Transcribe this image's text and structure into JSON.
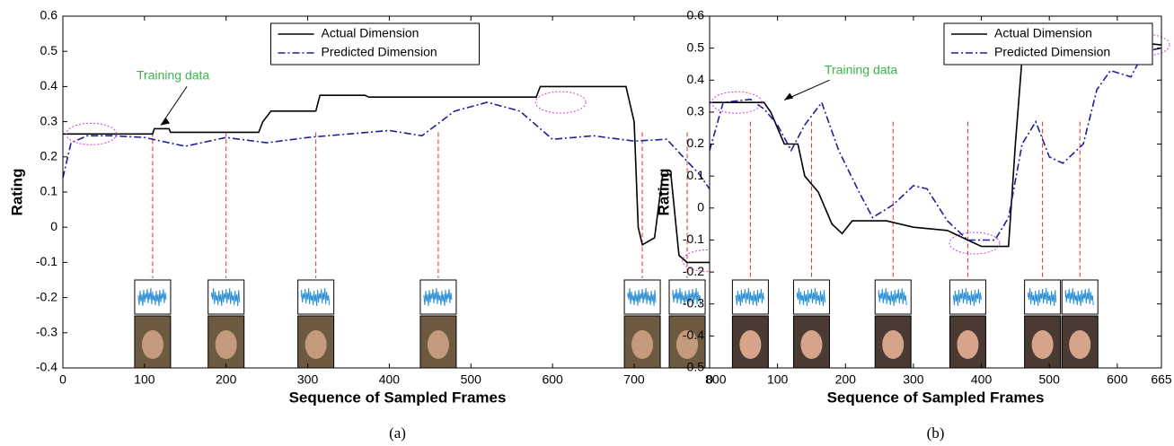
{
  "chart_data": [
    {
      "type": "line",
      "caption": "(a)",
      "x_label": "Sequence of Sampled Frames",
      "y_label": "Rating",
      "annotation": "Training data",
      "legend": "north",
      "xlim": [
        0,
        820
      ],
      "xticks": [
        0,
        100,
        200,
        300,
        400,
        500,
        600,
        700,
        800
      ],
      "ylim": [
        -0.4,
        0.6
      ],
      "yticks": [
        -0.4,
        -0.3,
        -0.2,
        -0.1,
        0,
        0.1,
        0.2,
        0.3,
        0.4,
        0.5,
        0.6
      ],
      "series": [
        {
          "name": "Actual Dimension",
          "color": "#000000",
          "style": "solid",
          "x": [
            0,
            110,
            112,
            130,
            132,
            240,
            245,
            255,
            310,
            315,
            370,
            375,
            580,
            585,
            690,
            700,
            705,
            710,
            725,
            735,
            745,
            755,
            765,
            820
          ],
          "values": [
            0.265,
            0.265,
            0.28,
            0.28,
            0.27,
            0.27,
            0.3,
            0.33,
            0.33,
            0.375,
            0.375,
            0.37,
            0.37,
            0.4,
            0.4,
            0.3,
            0.0,
            -0.05,
            -0.03,
            0.15,
            0.15,
            -0.08,
            -0.1,
            -0.1
          ]
        },
        {
          "name": "Predicted Dimension",
          "color": "#1f1f9e",
          "style": "dashdot",
          "x": [
            0,
            10,
            30,
            60,
            100,
            150,
            200,
            250,
            300,
            350,
            400,
            440,
            480,
            520,
            560,
            600,
            650,
            700,
            740,
            780,
            810,
            820
          ],
          "values": [
            0.14,
            0.24,
            0.26,
            0.26,
            0.255,
            0.23,
            0.255,
            0.24,
            0.255,
            0.265,
            0.275,
            0.26,
            0.33,
            0.355,
            0.33,
            0.25,
            0.26,
            0.245,
            0.25,
            0.15,
            0.05,
            -0.03
          ]
        }
      ]
    },
    {
      "type": "line",
      "caption": "(b)",
      "x_label": "Sequence of Sampled Frames",
      "y_label": "Rating",
      "annotation": "Training data",
      "legend": "northeast",
      "xlim": [
        0,
        665
      ],
      "xticks": [
        0,
        100,
        200,
        300,
        400,
        500,
        600,
        665
      ],
      "ylim": [
        -0.5,
        0.6
      ],
      "yticks": [
        -0.5,
        -0.4,
        -0.3,
        -0.2,
        -0.1,
        0,
        0.1,
        0.2,
        0.3,
        0.4,
        0.5,
        0.6
      ],
      "series": [
        {
          "name": "Actual Dimension",
          "color": "#000000",
          "style": "solid",
          "x": [
            0,
            80,
            90,
            100,
            110,
            130,
            140,
            160,
            180,
            195,
            210,
            260,
            300,
            350,
            380,
            400,
            440,
            450,
            460,
            500,
            520,
            550,
            560,
            580,
            620,
            665
          ],
          "values": [
            0.33,
            0.33,
            0.3,
            0.25,
            0.2,
            0.2,
            0.1,
            0.05,
            -0.05,
            -0.08,
            -0.04,
            -0.04,
            -0.06,
            -0.07,
            -0.1,
            -0.12,
            -0.12,
            0.2,
            0.47,
            0.47,
            0.46,
            0.48,
            0.5,
            0.53,
            0.52,
            0.51
          ]
        },
        {
          "name": "Predicted Dimension",
          "color": "#1f1f9e",
          "style": "dashdot",
          "x": [
            0,
            20,
            60,
            80,
            100,
            120,
            140,
            165,
            190,
            220,
            240,
            270,
            300,
            320,
            350,
            380,
            420,
            440,
            460,
            480,
            500,
            520,
            550,
            570,
            590,
            620,
            640,
            665
          ],
          "values": [
            0.18,
            0.33,
            0.34,
            0.31,
            0.26,
            0.18,
            0.26,
            0.33,
            0.18,
            0.05,
            -0.03,
            0.01,
            0.07,
            0.06,
            -0.04,
            -0.1,
            -0.1,
            -0.03,
            0.2,
            0.27,
            0.16,
            0.14,
            0.2,
            0.37,
            0.43,
            0.41,
            0.49,
            0.5
          ]
        }
      ]
    }
  ]
}
